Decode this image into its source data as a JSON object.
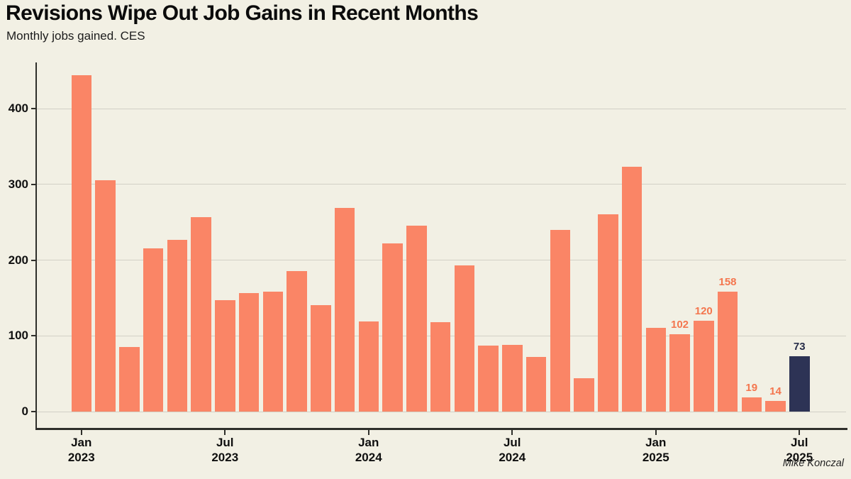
{
  "header": {
    "title": "Revisions Wipe Out Job Gains in Recent Months",
    "subtitle": "Monthly jobs gained. CES"
  },
  "footer": {
    "attribution": "Mike Konczal"
  },
  "colors": {
    "background": "#F2F0E4",
    "bar": "#FA8566",
    "bar_highlight": "#2D3355",
    "bar_label": "#F4764E",
    "bar_label_highlight": "#272D49",
    "gridline": "#D2D0C6",
    "axis": "#2F2F2B",
    "text": "#111111"
  },
  "chart_data": {
    "type": "bar",
    "title": "Revisions Wipe Out Job Gains in Recent Months",
    "subtitle": "Monthly jobs gained. CES",
    "xlabel": "",
    "ylabel": "",
    "grid": true,
    "legend": false,
    "ylim": [
      0,
      460
    ],
    "y_ticks": [
      0,
      100,
      200,
      300,
      400
    ],
    "categories": [
      "Jan 2023",
      "Feb 2023",
      "Mar 2023",
      "Apr 2023",
      "May 2023",
      "Jun 2023",
      "Jul 2023",
      "Aug 2023",
      "Sep 2023",
      "Oct 2023",
      "Nov 2023",
      "Dec 2023",
      "Jan 2024",
      "Feb 2024",
      "Mar 2024",
      "Apr 2024",
      "May 2024",
      "Jun 2024",
      "Jul 2024",
      "Aug 2024",
      "Sep 2024",
      "Oct 2024",
      "Nov 2024",
      "Dec 2024",
      "Jan 2025",
      "Feb 2025",
      "Mar 2025",
      "Apr 2025",
      "May 2025",
      "Jun 2025",
      "Jul 2025"
    ],
    "values": [
      444,
      306,
      85,
      216,
      227,
      257,
      147,
      157,
      158,
      186,
      141,
      269,
      119,
      222,
      246,
      118,
      193,
      87,
      88,
      72,
      240,
      44,
      261,
      323,
      111,
      102,
      120,
      158,
      19,
      14,
      73
    ],
    "labeled_points": [
      {
        "index": 25,
        "label": "102"
      },
      {
        "index": 26,
        "label": "120"
      },
      {
        "index": 27,
        "label": "158"
      },
      {
        "index": 28,
        "label": "19"
      },
      {
        "index": 29,
        "label": "14"
      },
      {
        "index": 30,
        "label": "73"
      }
    ],
    "highlight_index": 30,
    "x_ticks": [
      {
        "index": 0,
        "label": "Jan\n2023"
      },
      {
        "index": 6,
        "label": "Jul\n2023"
      },
      {
        "index": 12,
        "label": "Jan\n2024"
      },
      {
        "index": 18,
        "label": "Jul\n2024"
      },
      {
        "index": 24,
        "label": "Jan\n2025"
      },
      {
        "index": 30,
        "label": "Jul\n2025"
      }
    ]
  }
}
